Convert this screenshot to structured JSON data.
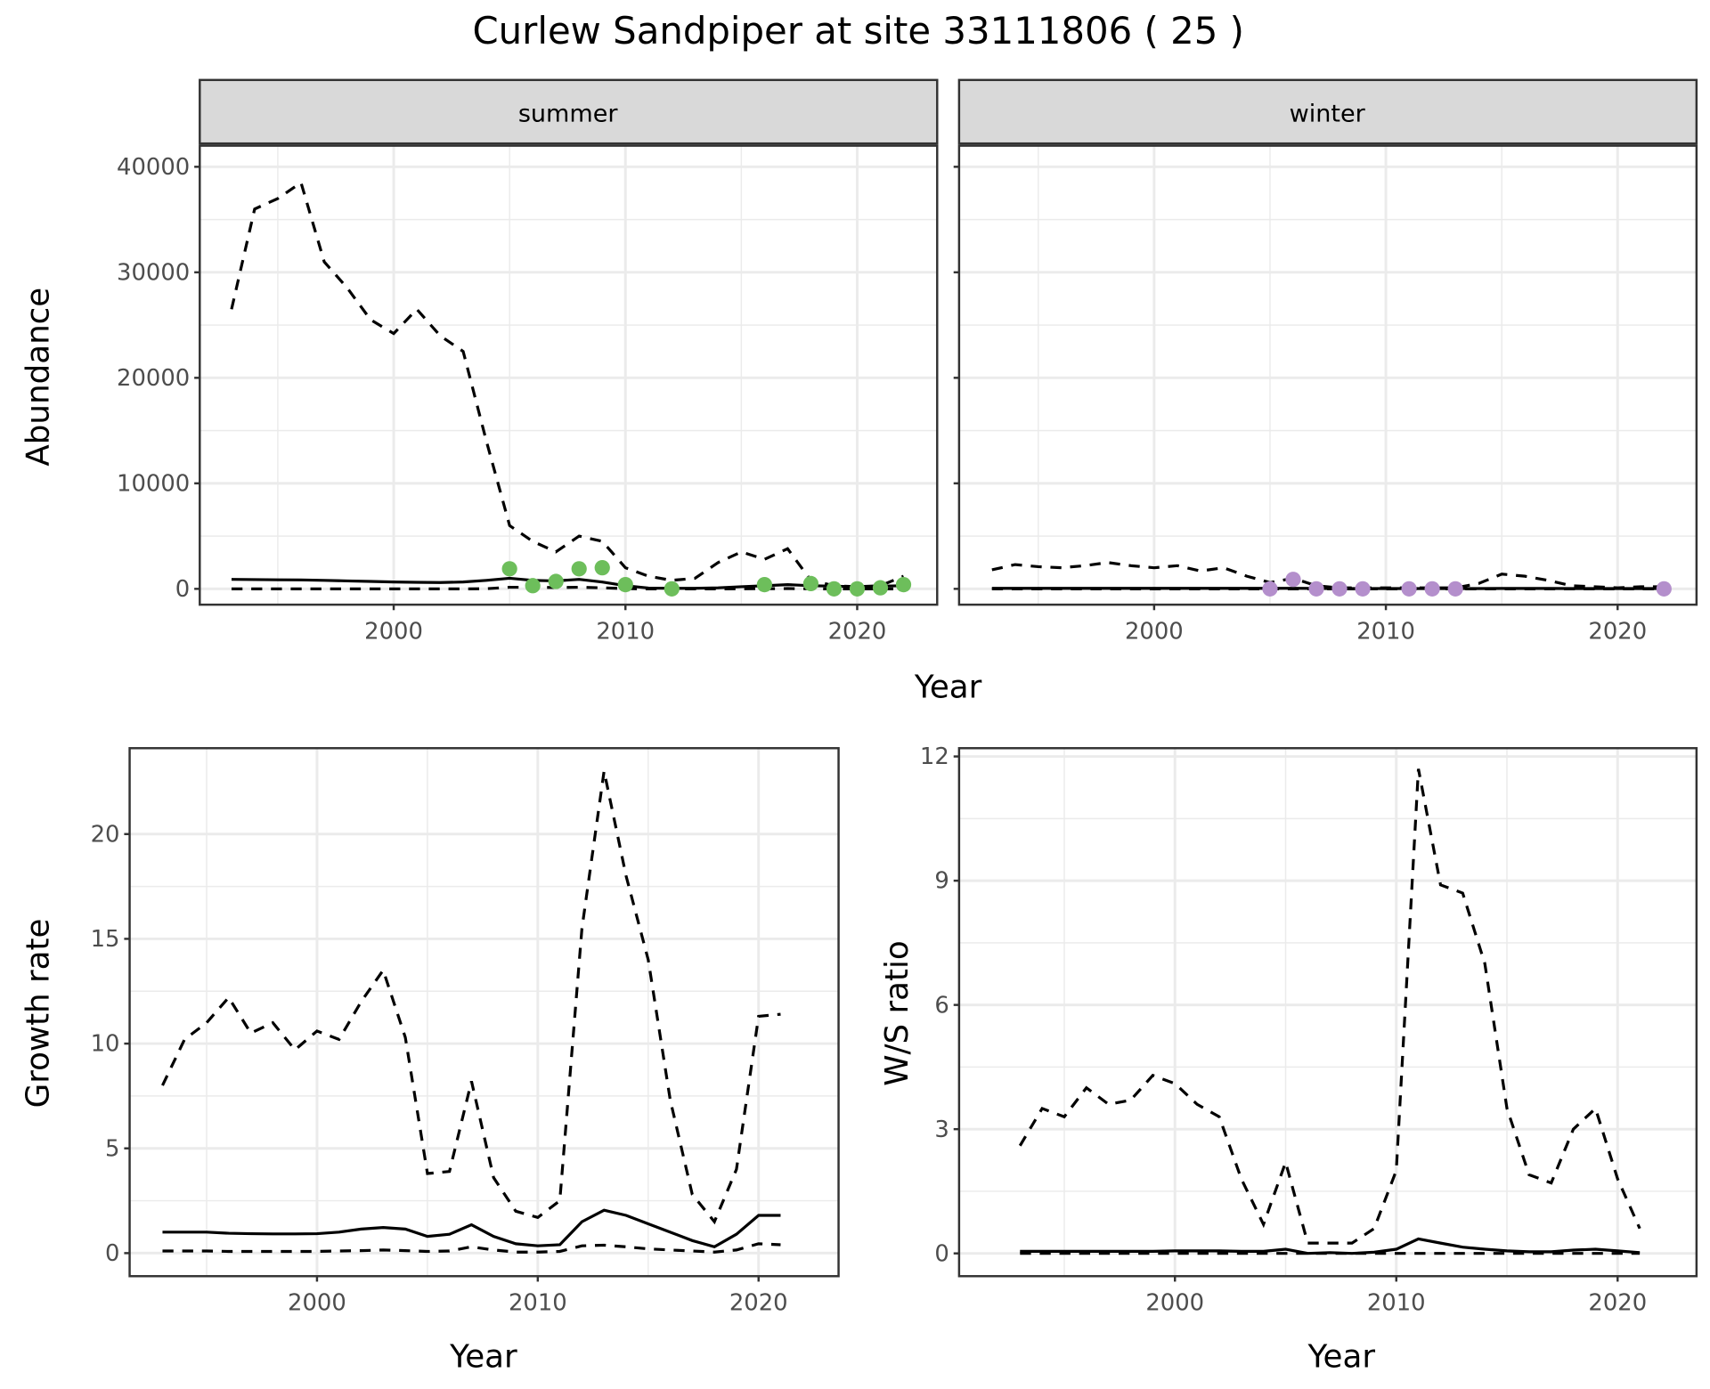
{
  "title": "Curlew Sandpiper at site 33111806 ( 25 )",
  "colors": {
    "summer_points": "#6DBE5B",
    "winter_points": "#B48FCC",
    "line": "#000000",
    "grid": "#EBEBEB",
    "strip": "#D9D9D9"
  },
  "chart_data": [
    {
      "type": "line",
      "facet": "summer",
      "strip_label": "summer",
      "xlabel": "Year",
      "ylabel": "Abundance",
      "xticks": [
        2000,
        2010,
        2020
      ],
      "yticks": [
        0,
        10000,
        20000,
        30000,
        40000
      ],
      "ylim": [
        -1500,
        42000
      ],
      "x": [
        1993,
        1994,
        1995,
        1996,
        1997,
        1998,
        1999,
        2000,
        2001,
        2002,
        2003,
        2004,
        2005,
        2006,
        2007,
        2008,
        2009,
        2010,
        2011,
        2012,
        2013,
        2014,
        2015,
        2016,
        2017,
        2018,
        2019,
        2020,
        2021,
        2022
      ],
      "series": [
        {
          "name": "upper",
          "style": "dashed",
          "values": [
            26500,
            36000,
            37000,
            38500,
            31000,
            28500,
            25500,
            24200,
            26500,
            24000,
            22500,
            14000,
            6000,
            4500,
            3500,
            5000,
            4500,
            2000,
            1200,
            800,
            1000,
            2500,
            3500,
            2800,
            3800,
            800,
            300,
            200,
            300,
            1200
          ]
        },
        {
          "name": "estimate",
          "style": "solid",
          "values": [
            900,
            880,
            860,
            850,
            800,
            750,
            700,
            650,
            620,
            600,
            650,
            800,
            1000,
            800,
            750,
            900,
            650,
            300,
            80,
            50,
            60,
            100,
            200,
            300,
            400,
            300,
            250,
            200,
            250,
            300
          ]
        },
        {
          "name": "lower",
          "style": "dashed",
          "values": [
            0,
            0,
            0,
            0,
            0,
            0,
            0,
            0,
            0,
            0,
            0,
            20,
            150,
            150,
            120,
            150,
            100,
            30,
            0,
            0,
            0,
            0,
            10,
            20,
            30,
            10,
            0,
            0,
            0,
            0
          ]
        }
      ],
      "points": {
        "x": [
          2005,
          2006,
          2007,
          2008,
          2009,
          2010,
          2012,
          2016,
          2018,
          2019,
          2020,
          2021,
          2022
        ],
        "y": [
          1900,
          300,
          700,
          1900,
          2000,
          400,
          0,
          400,
          500,
          0,
          0,
          100,
          400
        ]
      }
    },
    {
      "type": "line",
      "facet": "winter",
      "strip_label": "winter",
      "xlabel": "Year",
      "ylabel": "Abundance",
      "xticks": [
        2000,
        2010,
        2020
      ],
      "yticks": [
        0,
        10000,
        20000,
        30000,
        40000
      ],
      "ylim": [
        -1500,
        42000
      ],
      "x": [
        1993,
        1994,
        1995,
        1996,
        1997,
        1998,
        1999,
        2000,
        2001,
        2002,
        2003,
        2004,
        2005,
        2006,
        2007,
        2008,
        2009,
        2010,
        2011,
        2012,
        2013,
        2014,
        2015,
        2016,
        2017,
        2018,
        2019,
        2020,
        2021,
        2022
      ],
      "series": [
        {
          "name": "upper",
          "style": "dashed",
          "values": [
            1800,
            2300,
            2100,
            2000,
            2200,
            2500,
            2200,
            2000,
            2200,
            1700,
            2000,
            1200,
            600,
            1000,
            300,
            100,
            100,
            100,
            100,
            100,
            100,
            500,
            1400,
            1200,
            800,
            300,
            200,
            100,
            200,
            200
          ]
        },
        {
          "name": "estimate",
          "style": "solid",
          "values": [
            50,
            50,
            50,
            50,
            50,
            50,
            50,
            50,
            50,
            50,
            50,
            50,
            50,
            60,
            40,
            30,
            30,
            30,
            30,
            30,
            30,
            30,
            40,
            40,
            40,
            30,
            30,
            30,
            30,
            30
          ]
        },
        {
          "name": "lower",
          "style": "dashed",
          "values": [
            0,
            0,
            0,
            0,
            0,
            0,
            0,
            0,
            0,
            0,
            0,
            0,
            0,
            0,
            0,
            0,
            0,
            0,
            0,
            0,
            0,
            0,
            0,
            0,
            0,
            0,
            0,
            0,
            0,
            0
          ]
        }
      ],
      "points": {
        "x": [
          2005,
          2006,
          2007,
          2008,
          2009,
          2011,
          2012,
          2013,
          2022
        ],
        "y": [
          0,
          900,
          0,
          0,
          0,
          0,
          0,
          0,
          0
        ]
      }
    },
    {
      "type": "line",
      "xlabel": "Year",
      "ylabel": "Growth rate",
      "xticks": [
        2000,
        2010,
        2020
      ],
      "yticks": [
        0,
        5,
        10,
        15,
        20
      ],
      "ylim": [
        -1.1,
        24.1
      ],
      "x": [
        1993,
        1994,
        1995,
        1996,
        1997,
        1998,
        1999,
        2000,
        2001,
        2002,
        2003,
        2004,
        2005,
        2006,
        2007,
        2008,
        2009,
        2010,
        2011,
        2012,
        2013,
        2014,
        2015,
        2016,
        2017,
        2018,
        2019,
        2020,
        2021
      ],
      "series": [
        {
          "name": "upper",
          "style": "dashed",
          "values": [
            8,
            10.2,
            11,
            12.2,
            10.5,
            11,
            9.7,
            10.6,
            10.2,
            12,
            13.5,
            10.3,
            3.8,
            3.9,
            8.2,
            3.6,
            2,
            1.7,
            2.5,
            15.5,
            23,
            18,
            14,
            7.3,
            2.8,
            1.5,
            4,
            11.3,
            11.4
          ]
        },
        {
          "name": "estimate",
          "style": "solid",
          "values": [
            1.0,
            1.0,
            1.0,
            0.95,
            0.93,
            0.92,
            0.92,
            0.93,
            1.0,
            1.15,
            1.22,
            1.15,
            0.8,
            0.9,
            1.35,
            0.8,
            0.45,
            0.35,
            0.4,
            1.5,
            2.05,
            1.8,
            1.4,
            1.0,
            0.6,
            0.3,
            0.9,
            1.8,
            1.8
          ]
        },
        {
          "name": "lower",
          "style": "dashed",
          "values": [
            0.1,
            0.1,
            0.1,
            0.08,
            0.08,
            0.08,
            0.08,
            0.08,
            0.1,
            0.12,
            0.15,
            0.12,
            0.08,
            0.1,
            0.3,
            0.15,
            0.05,
            0.05,
            0.08,
            0.35,
            0.38,
            0.3,
            0.2,
            0.15,
            0.1,
            0.05,
            0.15,
            0.45,
            0.4
          ]
        }
      ]
    },
    {
      "type": "line",
      "xlabel": "Year",
      "ylabel": "W/S ratio",
      "xticks": [
        2000,
        2010,
        2020
      ],
      "yticks": [
        0,
        3,
        6,
        9,
        12
      ],
      "ylim": [
        -0.55,
        12.2
      ],
      "x": [
        1993,
        1994,
        1995,
        1996,
        1997,
        1998,
        1999,
        2000,
        2001,
        2002,
        2003,
        2004,
        2005,
        2006,
        2007,
        2008,
        2009,
        2010,
        2011,
        2012,
        2013,
        2014,
        2015,
        2016,
        2017,
        2018,
        2019,
        2020,
        2021
      ],
      "series": [
        {
          "name": "upper",
          "style": "dashed",
          "values": [
            2.6,
            3.5,
            3.3,
            4.0,
            3.6,
            3.7,
            4.3,
            4.1,
            3.6,
            3.3,
            1.8,
            0.7,
            2.2,
            0.25,
            0.25,
            0.25,
            0.6,
            2.0,
            11.7,
            8.9,
            8.7,
            7.0,
            3.5,
            1.9,
            1.7,
            3.0,
            3.5,
            1.8,
            0.6
          ]
        },
        {
          "name": "estimate",
          "style": "solid",
          "values": [
            0.05,
            0.05,
            0.05,
            0.05,
            0.05,
            0.05,
            0.05,
            0.06,
            0.06,
            0.06,
            0.05,
            0.05,
            0.1,
            0.0,
            0.02,
            0.0,
            0.03,
            0.1,
            0.35,
            0.25,
            0.15,
            0.1,
            0.06,
            0.04,
            0.04,
            0.08,
            0.1,
            0.06,
            0.02
          ]
        },
        {
          "name": "lower",
          "style": "dashed",
          "values": [
            0,
            0,
            0,
            0,
            0,
            0,
            0,
            0,
            0,
            0,
            0,
            0,
            0,
            0,
            0,
            0,
            0,
            0,
            0,
            0,
            0,
            0,
            0,
            0,
            0,
            0,
            0,
            0,
            0
          ]
        }
      ]
    }
  ]
}
